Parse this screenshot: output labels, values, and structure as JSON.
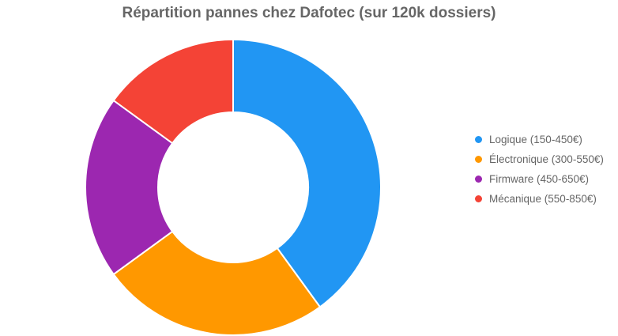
{
  "chart_data": {
    "type": "pie",
    "variant": "doughnut",
    "title": "Répartition pannes chez Dafotec (sur 120k dossiers)",
    "categories": [
      "Logique (150-450€)",
      "Électronique (300-550€)",
      "Firmware (450-650€)",
      "Mécanique (550-850€)"
    ],
    "values": [
      40,
      25,
      20,
      15
    ],
    "colors": [
      "#2196F3",
      "#FF9800",
      "#9C27B0",
      "#F44336"
    ],
    "legend_position": "right"
  }
}
